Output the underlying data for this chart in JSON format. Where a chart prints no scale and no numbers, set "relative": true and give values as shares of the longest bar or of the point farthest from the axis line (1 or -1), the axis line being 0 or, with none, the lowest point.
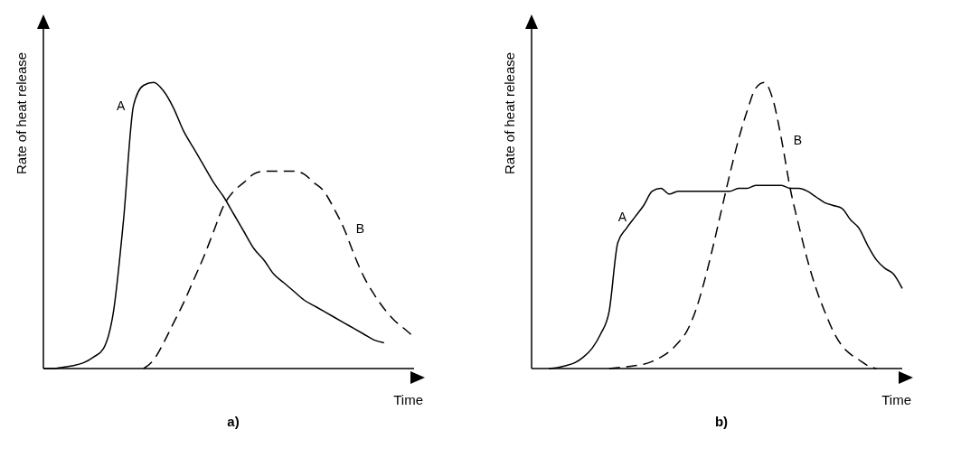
{
  "chart_data": [
    {
      "type": "line",
      "title": "a)",
      "xlabel": "Time",
      "ylabel": "Rate of heat release",
      "relative": true,
      "marker": "none",
      "categories": [
        null,
        null,
        null,
        null,
        null,
        null,
        null,
        null,
        null,
        null,
        null,
        null,
        null,
        null,
        null,
        null,
        null,
        null,
        null,
        null,
        null,
        null,
        null,
        null,
        null,
        null,
        null,
        null,
        null,
        null,
        null,
        null,
        null,
        null,
        null,
        null,
        null,
        null
      ],
      "series": [
        {
          "name": "A",
          "color": "#000000",
          "line_style": "solid",
          "values": [
            0,
            0,
            0.005,
            0.01,
            0.02,
            0.04,
            0.07,
            0.2,
            0.52,
            0.92,
            0.99,
            1,
            0.97,
            0.91,
            0.83,
            0.77,
            0.71,
            0.65,
            0.6,
            0.54,
            0.48,
            0.42,
            0.38,
            0.33,
            0.3,
            0.27,
            0.24,
            0.22,
            0.2,
            0.18,
            0.16,
            0.14,
            0.12,
            0.1,
            0.09,
            null,
            null,
            null
          ]
        },
        {
          "name": "B",
          "color": "#000000",
          "line_style": "dashed",
          "values": [
            null,
            null,
            null,
            null,
            null,
            null,
            null,
            null,
            null,
            null,
            0,
            0.03,
            0.09,
            0.16,
            0.23,
            0.31,
            0.39,
            0.48,
            0.57,
            0.62,
            0.65,
            0.68,
            0.69,
            0.69,
            0.69,
            0.69,
            0.68,
            0.65,
            0.62,
            0.56,
            0.49,
            0.4,
            0.32,
            0.26,
            0.21,
            0.17,
            0.14,
            0.11
          ]
        }
      ]
    },
    {
      "type": "line",
      "title": "b)",
      "xlabel": "Time",
      "ylabel": "Rate of heat release",
      "relative": true,
      "marker": "none",
      "categories": [
        null,
        null,
        null,
        null,
        null,
        null,
        null,
        null,
        null,
        null,
        null,
        null,
        null,
        null,
        null,
        null,
        null,
        null,
        null,
        null,
        null,
        null,
        null,
        null,
        null,
        null,
        null,
        null,
        null,
        null,
        null,
        null,
        null,
        null,
        null,
        null,
        null,
        null,
        null,
        null,
        null,
        null,
        null,
        null
      ],
      "series": [
        {
          "name": "A",
          "color": "#000000",
          "line_style": "solid",
          "values": [
            null,
            null,
            0,
            0.003,
            0.01,
            0.02,
            0.04,
            0.07,
            0.12,
            0.2,
            0.44,
            0.49,
            0.53,
            0.57,
            0.62,
            0.63,
            0.61,
            0.62,
            0.62,
            0.62,
            0.62,
            0.62,
            0.62,
            0.62,
            0.63,
            0.63,
            0.64,
            0.64,
            0.64,
            0.64,
            0.63,
            0.63,
            0.62,
            0.6,
            0.58,
            0.57,
            0.56,
            0.52,
            0.49,
            0.43,
            0.38,
            0.35,
            0.33,
            0.28
          ]
        },
        {
          "name": "B",
          "color": "#000000",
          "line_style": "dashed",
          "values": [
            null,
            null,
            null,
            null,
            null,
            null,
            null,
            null,
            null,
            0,
            0.003,
            0.006,
            0.01,
            0.015,
            0.025,
            0.04,
            0.06,
            0.09,
            0.13,
            0.2,
            0.3,
            0.42,
            0.55,
            0.68,
            0.8,
            0.9,
            0.98,
            1,
            0.94,
            0.8,
            0.63,
            0.5,
            0.38,
            0.28,
            0.2,
            0.13,
            0.08,
            0.05,
            0.03,
            0.01,
            0,
            null,
            null,
            null
          ]
        }
      ]
    }
  ]
}
